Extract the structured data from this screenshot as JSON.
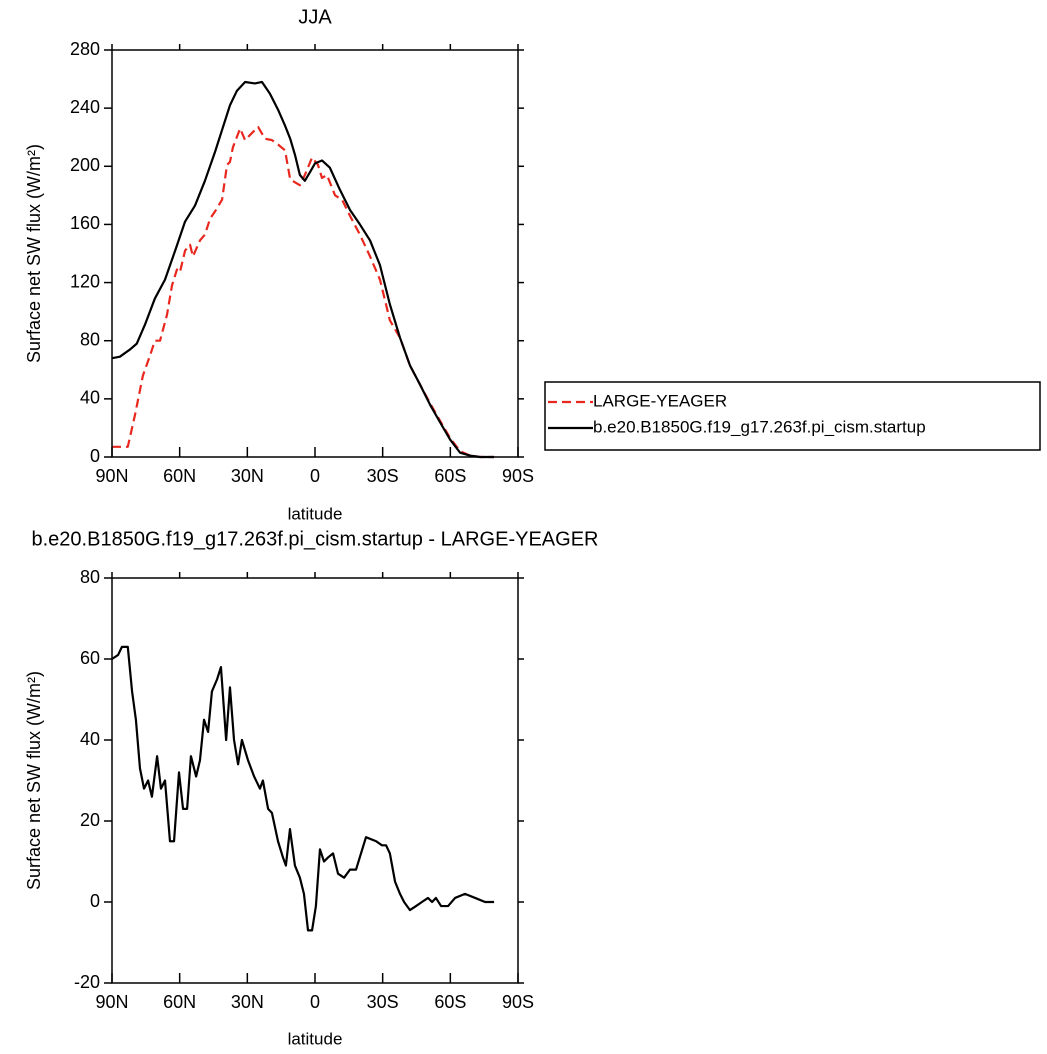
{
  "chart_data": [
    {
      "type": "line",
      "title": "JJA",
      "xlabel": "latitude",
      "ylabel": "Surface net SW flux (W/m²)",
      "xlim": [
        90,
        -90
      ],
      "ylim": [
        0,
        280
      ],
      "xticks": [
        {
          "value": 90,
          "label": "90N"
        },
        {
          "value": 60,
          "label": "60N"
        },
        {
          "value": 30,
          "label": "30N"
        },
        0,
        {
          "value": -30,
          "label": "30S"
        },
        {
          "value": -60,
          "label": "60S"
        },
        {
          "value": -90,
          "label": "90S"
        }
      ],
      "yticks": [
        0,
        40,
        80,
        120,
        160,
        200,
        240,
        280
      ],
      "legend": "outside-right",
      "series": [
        {
          "name": "LARGE-YEAGER",
          "color": "#e8281e",
          "dashed": true,
          "x": [
            90,
            83,
            79.8,
            76.3,
            73.1,
            71,
            68.7,
            65.6,
            63.4,
            61.2,
            59.9,
            57.6,
            55.4,
            54.1,
            51,
            48.8,
            46.5,
            44.3,
            41.2,
            39,
            37.7,
            36.4,
            33.2,
            31,
            27.9,
            25.2,
            22.2,
            19.1,
            16.4,
            13.3,
            11,
            8.9,
            6.7,
            4.5,
            1.3,
            -1.3,
            -3.1,
            -5.3,
            -8.9,
            -12,
            -15.5,
            -19.9,
            -24.4,
            -28.8,
            -33.2,
            -37.7,
            -42.1,
            -46.5,
            -51,
            -55.4,
            -59.9,
            -64.3,
            -68.7,
            -73.2,
            -79.4
          ],
          "values": [
            7,
            7,
            29,
            56,
            70,
            80,
            80,
            98,
            118,
            129,
            127,
            142,
            146,
            138,
            149,
            153,
            164,
            169,
            177,
            201,
            203,
            213,
            226,
            218,
            223,
            227,
            219,
            218,
            215,
            211,
            191,
            189,
            187,
            194,
            206,
            201,
            192,
            194,
            180,
            177,
            166,
            153,
            138,
            122,
            94,
            82,
            63,
            50,
            37,
            25,
            13,
            4,
            1,
            0,
            0
          ]
        },
        {
          "name": "b.e20.B1850G.f19_g17.263f.pi_cism.startup",
          "color": "#000000",
          "dashed": false,
          "x": [
            90,
            86.5,
            82,
            79,
            75.4,
            71,
            66.5,
            62,
            57.6,
            53.2,
            48.8,
            44.3,
            41.2,
            37.7,
            34.6,
            31,
            26.6,
            23.5,
            20,
            16.4,
            13.3,
            11,
            8.9,
            6.7,
            4.5,
            2.2,
            0,
            -3.1,
            -6.6,
            -11,
            -15.5,
            -19.9,
            -24.4,
            -28.8,
            -33.2,
            -37.7,
            -42.1,
            -46.5,
            -51,
            -55.4,
            -59.9,
            -64.3,
            -68.7,
            -73.2,
            -79.4
          ],
          "values": [
            68,
            69,
            74,
            78,
            91,
            109,
            122,
            142,
            162,
            173,
            190,
            210,
            225,
            242,
            252,
            258,
            257,
            258,
            250,
            239,
            228,
            219,
            208,
            194,
            190,
            196,
            202,
            204,
            199,
            184,
            170,
            160,
            149,
            132,
            105,
            82,
            63,
            50,
            36,
            24,
            12,
            3,
            1,
            0,
            0
          ]
        }
      ]
    },
    {
      "type": "line",
      "title": "b.e20.B1850G.f19_g17.263f.pi_cism.startup - LARGE-YEAGER",
      "xlabel": "latitude",
      "ylabel": "Surface net SW flux (W/m²)",
      "xlim": [
        90,
        -90
      ],
      "ylim": [
        -20,
        80
      ],
      "xticks": [
        {
          "value": 90,
          "label": "90N"
        },
        {
          "value": 60,
          "label": "60N"
        },
        {
          "value": 30,
          "label": "30N"
        },
        0,
        {
          "value": -30,
          "label": "30S"
        },
        {
          "value": -60,
          "label": "60S"
        },
        {
          "value": -90,
          "label": "90S"
        }
      ],
      "yticks": [
        -20,
        0,
        20,
        40,
        60,
        80
      ],
      "series": [
        {
          "color": "#000000",
          "dashed": false,
          "x": [
            90,
            87.3,
            85.6,
            83,
            81.1,
            79.4,
            77.6,
            75.8,
            74,
            72.3,
            70,
            68.3,
            66.5,
            64.3,
            62.5,
            60.3,
            58.5,
            56.7,
            55,
            52.7,
            51,
            49.2,
            47.4,
            45.7,
            43.4,
            41.7,
            39.4,
            37.7,
            35.9,
            34.1,
            32.4,
            29.7,
            27,
            24.4,
            23.1,
            20.8,
            19.1,
            16.4,
            14.2,
            12.9,
            11.1,
            8.9,
            6.7,
            4.9,
            3.1,
            1.3,
            -0.4,
            -2.2,
            -4,
            -5.8,
            -8,
            -10.2,
            -12.9,
            -15.5,
            -18.2,
            -22.6,
            -27.1,
            -29.7,
            -31.5,
            -33.2,
            -35.5,
            -37.7,
            -39.5,
            -42.1,
            -44.8,
            -47.4,
            -50.1,
            -51.9,
            -53.6,
            -55.9,
            -59,
            -62.1,
            -66.5,
            -71,
            -75.4,
            -79.4
          ],
          "values": [
            60,
            61,
            63,
            63,
            52,
            45,
            33,
            28,
            30,
            26,
            36,
            28,
            30,
            15,
            15,
            32,
            23,
            23,
            36,
            31,
            35,
            45,
            42,
            52,
            55,
            58,
            40,
            53,
            40,
            34,
            40,
            35,
            31,
            28,
            30,
            23,
            22,
            15,
            11,
            9,
            18,
            9,
            6,
            2,
            -7,
            -7,
            -1,
            13,
            10,
            11,
            12,
            7,
            6,
            8,
            8,
            16,
            15,
            14,
            14,
            12,
            5,
            2,
            0,
            -2,
            -1,
            0,
            1,
            0,
            1,
            -1,
            -1,
            1,
            2,
            1,
            0,
            0
          ]
        }
      ]
    }
  ]
}
